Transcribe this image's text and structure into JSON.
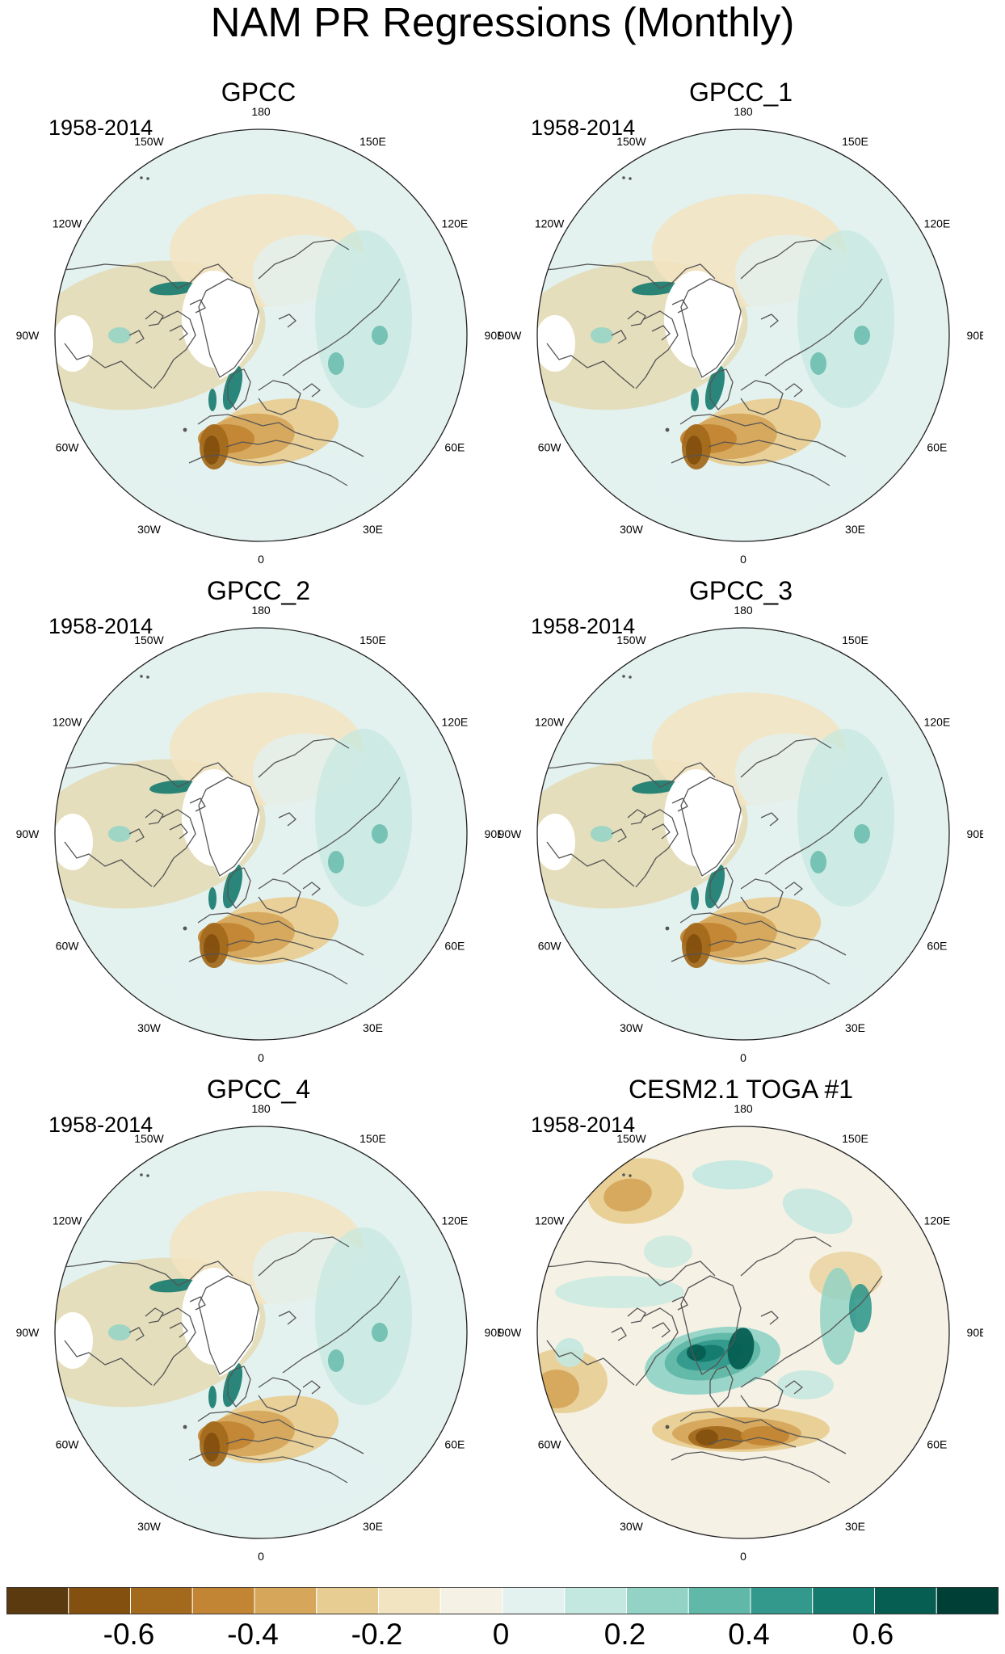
{
  "title": "NAM PR Regressions (Monthly)",
  "panels": [
    {
      "name": "GPCC",
      "period": "1958-2014",
      "variant": "obs"
    },
    {
      "name": "GPCC_1",
      "period": "1958-2014",
      "variant": "obs"
    },
    {
      "name": "GPCC_2",
      "period": "1958-2014",
      "variant": "obs"
    },
    {
      "name": "GPCC_3",
      "period": "1958-2014",
      "variant": "obs"
    },
    {
      "name": "GPCC_4",
      "period": "1958-2014",
      "variant": "obs"
    },
    {
      "name": "CESM2.1 TOGA #1",
      "period": "1958-2014",
      "variant": "model"
    }
  ],
  "longitude_labels": [
    "180",
    "150E",
    "120E",
    "90E",
    "60E",
    "30E",
    "0",
    "30W",
    "60W",
    "90W",
    "120W",
    "150W"
  ],
  "colorbar": {
    "colors": [
      "#5b3a0f",
      "#84500f",
      "#a36a1d",
      "#c28533",
      "#d6a75b",
      "#e8cd92",
      "#f3e4c1",
      "#f5f1e5",
      "#e3f1ef",
      "#c3e8e0",
      "#93d3c6",
      "#60b8a8",
      "#33998c",
      "#157a6e",
      "#065e52",
      "#003f35"
    ],
    "tick_labels": [
      "-0.6",
      "-0.4",
      "-0.2",
      "0",
      "0.2",
      "0.4",
      "0.6"
    ]
  }
}
